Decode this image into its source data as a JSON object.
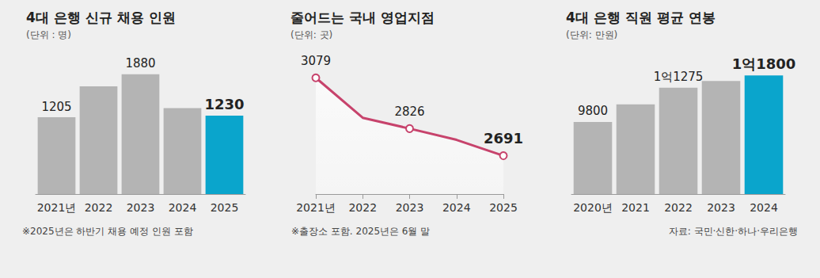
{
  "chart_data": [
    {
      "type": "bar",
      "title": "4대 은행 신규 채용 인원",
      "subtitle": "(단위 : 명)",
      "categories": [
        "2021년",
        "2022",
        "2023",
        "2024",
        "2025"
      ],
      "values": [
        1205,
        1690,
        1880,
        1350,
        1230
      ],
      "value_labels": [
        "1205",
        null,
        "1880",
        null,
        "1230"
      ],
      "colors": [
        "#b4b4b4",
        "#b4b4b4",
        "#b4b4b4",
        "#b4b4b4",
        "#0aa5cc"
      ],
      "ylim": [
        0,
        2300
      ],
      "data_labels": true,
      "tick_labels": "x",
      "grid": false,
      "annotations": [
        "※2025년은 하반기 채용 예정 인원 포함"
      ]
    },
    {
      "type": "line",
      "title": "줄어드는 국내 영업지점",
      "subtitle": "(단위: 곳)",
      "categories": [
        "2021년",
        "2022",
        "2023",
        "2024",
        "2025"
      ],
      "values": [
        3079,
        2880,
        2826,
        2770,
        2691
      ],
      "value_labels": [
        "3079",
        null,
        "2826",
        null,
        "2691"
      ],
      "color": "#c7436c",
      "marker": "circle",
      "ylim": [
        2500,
        3230
      ],
      "data_labels": true,
      "tick_labels": "x",
      "grid": false,
      "annotations": [
        "※출장소 포함. 2025년은 6월 말"
      ]
    },
    {
      "type": "bar",
      "title": "4대 은행 직원 평균 연봉",
      "subtitle": "(단위: 만원)",
      "categories": [
        "2020년",
        "2021",
        "2022",
        "2023",
        "2024"
      ],
      "values": [
        9800,
        10560,
        11275,
        11560,
        11800
      ],
      "value_labels": [
        "9800",
        null,
        "1억1275",
        null,
        "1억1800"
      ],
      "colors": [
        "#b4b4b4",
        "#b4b4b4",
        "#b4b4b4",
        "#b4b4b4",
        "#0aa5cc"
      ],
      "ylim": [
        6700,
        13000
      ],
      "data_labels": true,
      "tick_labels": "x",
      "grid": false,
      "annotations": [
        "자료: 국민·신한·하나·우리은행"
      ]
    }
  ]
}
